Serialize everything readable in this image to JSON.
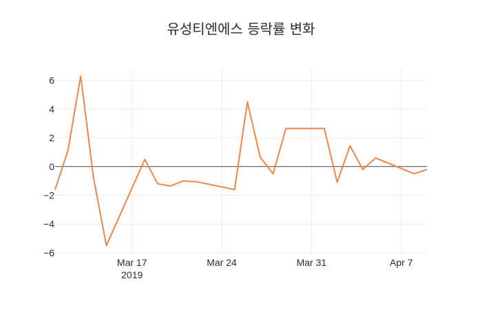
{
  "chart_data": {
    "type": "line",
    "title": "유성티엔에스 등락률 변화",
    "xlabel": "",
    "ylabel": "",
    "x": [
      "2019-03-11",
      "2019-03-12",
      "2019-03-13",
      "2019-03-14",
      "2019-03-15",
      "2019-03-18",
      "2019-03-19",
      "2019-03-20",
      "2019-03-21",
      "2019-03-22",
      "2019-03-25",
      "2019-03-26",
      "2019-03-27",
      "2019-03-28",
      "2019-03-29",
      "2019-04-01",
      "2019-04-02",
      "2019-04-03",
      "2019-04-04",
      "2019-04-05",
      "2019-04-08",
      "2019-04-09"
    ],
    "values": [
      -1.6,
      1.1,
      6.3,
      -0.8,
      -5.5,
      0.5,
      -1.2,
      -1.35,
      -1.0,
      -1.05,
      -1.6,
      4.5,
      0.65,
      -0.5,
      2.65,
      2.65,
      -1.1,
      1.45,
      -0.2,
      0.6,
      -0.5,
      -0.2
    ],
    "series_color": "#EF8546",
    "xlim": [
      "2019-03-11",
      "2019-04-09"
    ],
    "ylim": [
      -6.1,
      6.8
    ],
    "y_ticks": [
      6,
      4,
      2,
      0,
      -2,
      -4,
      -6
    ],
    "y_tick_labels": [
      "6",
      "4",
      "2",
      "0",
      "−2",
      "−4",
      "−6"
    ],
    "x_ticks": [
      "2019-03-17",
      "2019-03-24",
      "2019-03-31",
      "2019-04-07"
    ],
    "x_tick_labels": [
      "Mar 17",
      "Mar 24",
      "Mar 31",
      "Apr 7"
    ],
    "x_tick_sublabel": "2019",
    "grid": true,
    "zero_line": true
  }
}
